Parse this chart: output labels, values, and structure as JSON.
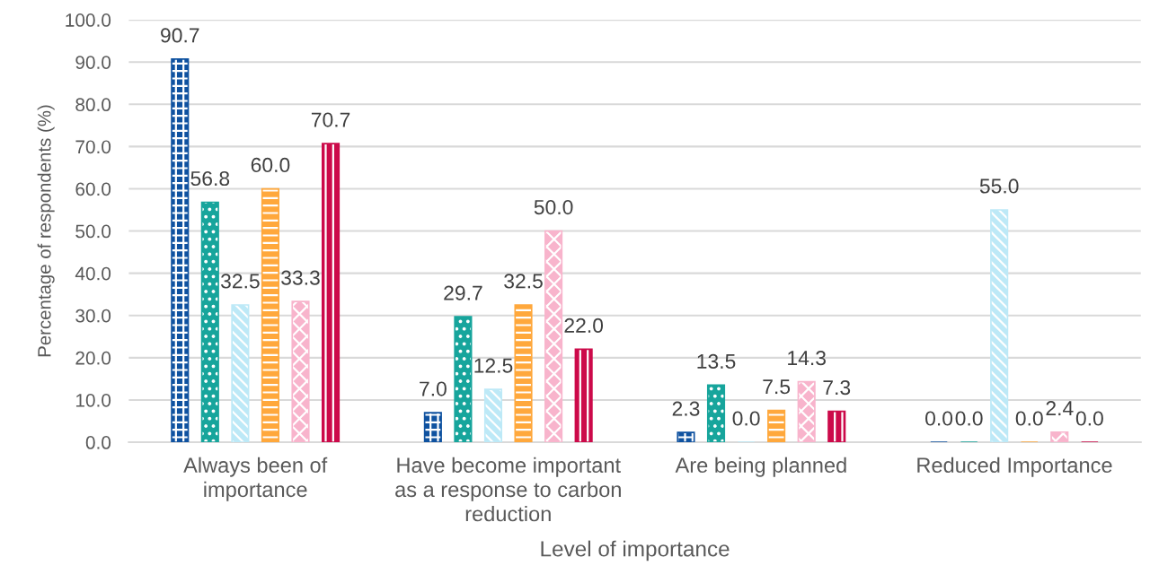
{
  "chart_data": {
    "type": "bar",
    "xlabel": "Level of importance",
    "ylabel": "Percentage of respondents (%)",
    "categories": [
      "Always been of importance",
      "Have become important as a response to carbon reduction",
      "Are being planned",
      "Reduced Importance"
    ],
    "series": [
      {
        "color": "#0f52a0",
        "values": [
          90.7,
          7.0,
          2.3,
          0.0
        ],
        "value_labels": [
          "90.7",
          "7.0",
          "2.3",
          "0.0"
        ]
      },
      {
        "color": "#17a59c",
        "values": [
          56.8,
          29.7,
          13.5,
          0.0
        ],
        "value_labels": [
          "56.8",
          "29.7",
          "13.5",
          "0.0"
        ]
      },
      {
        "color": "#bde9f7",
        "values": [
          32.5,
          12.5,
          0.0,
          55.0
        ],
        "value_labels": [
          "32.5",
          "12.5",
          "0.0",
          "55.0"
        ]
      },
      {
        "color": "#ffa83c",
        "values": [
          60.0,
          32.5,
          7.5,
          0.0
        ],
        "value_labels": [
          "60.0",
          "32.5",
          "7.5",
          "0.0"
        ]
      },
      {
        "color": "#f8b4cc",
        "values": [
          33.3,
          50.0,
          14.3,
          2.4
        ],
        "value_labels": [
          "33.3",
          "50.0",
          "14.3",
          "2.4"
        ]
      },
      {
        "color": "#cc0a4a",
        "values": [
          70.7,
          22.0,
          7.3,
          0.0
        ],
        "value_labels": [
          "70.7",
          "22.0",
          "7.3",
          "0.0"
        ]
      }
    ],
    "ylim": [
      0,
      100
    ],
    "yticks": [
      {
        "value": 0,
        "label": "0.0"
      },
      {
        "value": 10,
        "label": "10.0"
      },
      {
        "value": 20,
        "label": "20.0"
      },
      {
        "value": 30,
        "label": "30.0"
      },
      {
        "value": 40,
        "label": "40.0"
      },
      {
        "value": 50,
        "label": "50.0"
      },
      {
        "value": 60,
        "label": "60.0"
      },
      {
        "value": 70,
        "label": "70.0"
      },
      {
        "value": 80,
        "label": "80.0"
      },
      {
        "value": 90,
        "label": "90.0"
      },
      {
        "value": 100,
        "label": "100.0"
      }
    ],
    "grid": "y"
  }
}
